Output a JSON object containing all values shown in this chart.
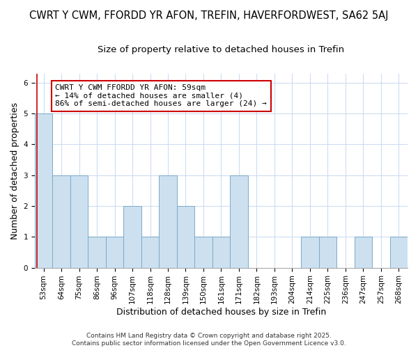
{
  "title_line1": "CWRT Y CWM, FFORDD YR AFON, TREFIN, HAVERFORDWEST, SA62 5AJ",
  "title_line2": "Size of property relative to detached houses in Trefin",
  "xlabel": "Distribution of detached houses by size in Trefin",
  "ylabel": "Number of detached properties",
  "categories": [
    "53sqm",
    "64sqm",
    "75sqm",
    "86sqm",
    "96sqm",
    "107sqm",
    "118sqm",
    "128sqm",
    "139sqm",
    "150sqm",
    "161sqm",
    "171sqm",
    "182sqm",
    "193sqm",
    "204sqm",
    "214sqm",
    "225sqm",
    "236sqm",
    "247sqm",
    "257sqm",
    "268sqm"
  ],
  "values": [
    5,
    3,
    3,
    1,
    1,
    2,
    1,
    3,
    2,
    1,
    1,
    3,
    0,
    0,
    0,
    1,
    1,
    0,
    1,
    0,
    1
  ],
  "bar_color": "#cce0f0",
  "bar_edge_color": "#7aaac8",
  "red_line_x": -0.38,
  "annotation_text": "CWRT Y CWM FFORDD YR AFON: 59sqm\n← 14% of detached houses are smaller (4)\n86% of semi-detached houses are larger (24) →",
  "annotation_box_color": "white",
  "annotation_box_edge_color": "#cc0000",
  "ylim": [
    0,
    6.3
  ],
  "yticks": [
    0,
    1,
    2,
    3,
    4,
    5,
    6
  ],
  "footer_text": "Contains HM Land Registry data © Crown copyright and database right 2025.\nContains public sector information licensed under the Open Government Licence v3.0.",
  "background_color": "#ffffff",
  "grid_color": "#ccddf0",
  "title_fontsize": 10.5,
  "subtitle_fontsize": 9.5,
  "tick_fontsize": 7.5,
  "label_fontsize": 9,
  "footer_fontsize": 6.5,
  "annotation_fontsize": 8
}
